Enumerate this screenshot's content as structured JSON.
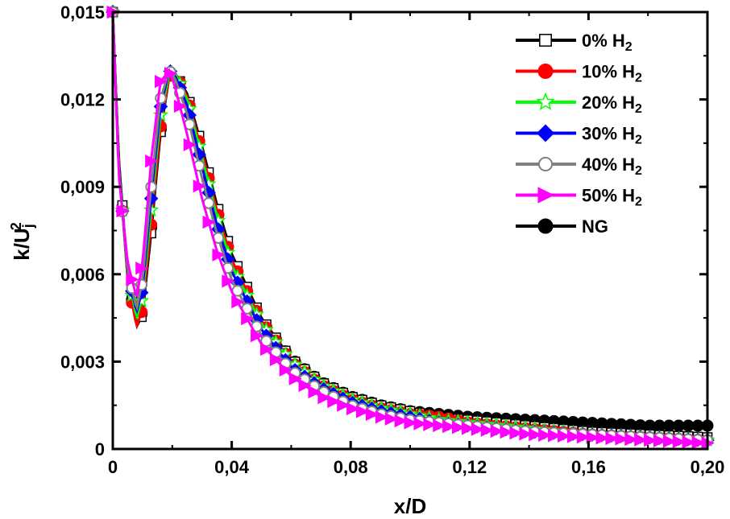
{
  "chart_data": {
    "type": "line",
    "title": "",
    "xlabel": "x/D",
    "ylabel_main": "k/U",
    "ylabel_sub": "j",
    "ylabel_sup": "2",
    "xlim": [
      0,
      0.2
    ],
    "ylim": [
      0,
      0.015
    ],
    "x_ticks": [
      0,
      0.04,
      0.08,
      0.12,
      0.16,
      0.2
    ],
    "x_tick_labels": [
      "0",
      "0,04",
      "0,08",
      "0,12",
      "0,16",
      "0,20"
    ],
    "y_ticks": [
      0,
      0.003,
      0.006,
      0.009,
      0.012,
      0.015
    ],
    "y_tick_labels": [
      "0",
      "0,003",
      "0,006",
      "0,009",
      "0,012",
      "0,015"
    ],
    "grid": false,
    "legend_position": "top-right",
    "legend_sub": "2",
    "series": [
      {
        "name": "0% H",
        "sub": "2",
        "color": "#000000",
        "marker": "square-open",
        "x": [
          0,
          0.002,
          0.005,
          0.008,
          0.01,
          0.013,
          0.016,
          0.019,
          0.021,
          0.025,
          0.03,
          0.035,
          0.04,
          0.05,
          0.06,
          0.07,
          0.08,
          0.09,
          0.1,
          0.11,
          0.12,
          0.14,
          0.16,
          0.18,
          0.2
        ],
        "y": [
          0.015,
          0.01,
          0.006,
          0.0042,
          0.0046,
          0.0075,
          0.0108,
          0.0128,
          0.0129,
          0.0122,
          0.0104,
          0.0084,
          0.0067,
          0.0045,
          0.0031,
          0.0023,
          0.0018,
          0.0015,
          0.0013,
          0.0011,
          0.001,
          0.0008,
          0.0006,
          0.0005,
          0.0004
        ]
      },
      {
        "name": "10% H",
        "sub": "2",
        "color": "#ff0000",
        "marker": "circle",
        "x": [
          0,
          0.002,
          0.005,
          0.008,
          0.01,
          0.013,
          0.016,
          0.019,
          0.021,
          0.025,
          0.03,
          0.035,
          0.04,
          0.05,
          0.06,
          0.07,
          0.08,
          0.09,
          0.1,
          0.11,
          0.12,
          0.14,
          0.16,
          0.18,
          0.2
        ],
        "y": [
          0.015,
          0.0098,
          0.0058,
          0.0042,
          0.0048,
          0.0078,
          0.011,
          0.0128,
          0.0129,
          0.0121,
          0.0102,
          0.0082,
          0.0065,
          0.0044,
          0.003,
          0.0022,
          0.0017,
          0.0014,
          0.0012,
          0.0011,
          0.0009,
          0.0007,
          0.0005,
          0.0004,
          0.0003
        ]
      },
      {
        "name": "20% H",
        "sub": "2",
        "color": "#00ff00",
        "marker": "star-open",
        "x": [
          0,
          0.002,
          0.005,
          0.008,
          0.01,
          0.013,
          0.016,
          0.019,
          0.021,
          0.025,
          0.03,
          0.035,
          0.04,
          0.05,
          0.06,
          0.07,
          0.08,
          0.09,
          0.1,
          0.11,
          0.12,
          0.14,
          0.16,
          0.18,
          0.2
        ],
        "y": [
          0.015,
          0.0097,
          0.006,
          0.0045,
          0.0052,
          0.0083,
          0.0114,
          0.0129,
          0.0129,
          0.012,
          0.01,
          0.008,
          0.0063,
          0.0043,
          0.003,
          0.0022,
          0.0017,
          0.0014,
          0.0012,
          0.001,
          0.0009,
          0.0007,
          0.0005,
          0.0004,
          0.0003
        ]
      },
      {
        "name": "30% H",
        "sub": "2",
        "color": "#0000ff",
        "marker": "diamond",
        "x": [
          0,
          0.002,
          0.005,
          0.008,
          0.01,
          0.013,
          0.016,
          0.019,
          0.021,
          0.025,
          0.03,
          0.035,
          0.04,
          0.05,
          0.06,
          0.07,
          0.08,
          0.09,
          0.1,
          0.11,
          0.12,
          0.14,
          0.16,
          0.18,
          0.2
        ],
        "y": [
          0.015,
          0.0096,
          0.0061,
          0.0047,
          0.0055,
          0.0087,
          0.0117,
          0.013,
          0.0128,
          0.0118,
          0.0097,
          0.0077,
          0.0061,
          0.0041,
          0.0028,
          0.0021,
          0.0016,
          0.0013,
          0.0011,
          0.0009,
          0.0008,
          0.0006,
          0.0005,
          0.0004,
          0.0003
        ]
      },
      {
        "name": "40% H",
        "sub": "2",
        "color": "#808080",
        "marker": "circle-open",
        "x": [
          0,
          0.002,
          0.005,
          0.008,
          0.01,
          0.013,
          0.016,
          0.019,
          0.021,
          0.025,
          0.03,
          0.035,
          0.04,
          0.05,
          0.06,
          0.07,
          0.08,
          0.09,
          0.1,
          0.11,
          0.12,
          0.14,
          0.16,
          0.18,
          0.2
        ],
        "y": [
          0.015,
          0.0095,
          0.0062,
          0.0048,
          0.0058,
          0.0091,
          0.012,
          0.013,
          0.0127,
          0.0115,
          0.0093,
          0.0074,
          0.0058,
          0.0039,
          0.0027,
          0.002,
          0.0015,
          0.0012,
          0.001,
          0.0009,
          0.0008,
          0.0006,
          0.0005,
          0.0004,
          0.0003
        ]
      },
      {
        "name": "50% H",
        "sub": "2",
        "color": "#ff00ff",
        "marker": "triangle-right",
        "x": [
          0,
          0.002,
          0.005,
          0.008,
          0.01,
          0.013,
          0.016,
          0.019,
          0.021,
          0.025,
          0.03,
          0.035,
          0.04,
          0.05,
          0.06,
          0.07,
          0.08,
          0.09,
          0.1,
          0.11,
          0.12,
          0.14,
          0.16,
          0.18,
          0.2
        ],
        "y": [
          0.015,
          0.0094,
          0.0064,
          0.0052,
          0.0064,
          0.01,
          0.0126,
          0.013,
          0.0124,
          0.0108,
          0.0086,
          0.0068,
          0.0054,
          0.0036,
          0.0025,
          0.0018,
          0.0014,
          0.0011,
          0.0009,
          0.0008,
          0.0007,
          0.0005,
          0.0004,
          0.0003,
          0.0002
        ]
      },
      {
        "name": "NG",
        "sub": "",
        "color": "#000000",
        "marker": "circle",
        "x": [
          0,
          0.002,
          0.005,
          0.008,
          0.01,
          0.013,
          0.016,
          0.019,
          0.021,
          0.025,
          0.03,
          0.035,
          0.04,
          0.05,
          0.06,
          0.07,
          0.08,
          0.09,
          0.1,
          0.11,
          0.12,
          0.14,
          0.16,
          0.18,
          0.2
        ],
        "y": [
          0.015,
          0.0098,
          0.0059,
          0.0043,
          0.0047,
          0.0077,
          0.0109,
          0.0128,
          0.0129,
          0.0121,
          0.0102,
          0.0082,
          0.0065,
          0.0044,
          0.0031,
          0.0023,
          0.0018,
          0.0015,
          0.0013,
          0.0012,
          0.0011,
          0.001,
          0.0009,
          0.0008,
          0.0008
        ]
      }
    ]
  }
}
